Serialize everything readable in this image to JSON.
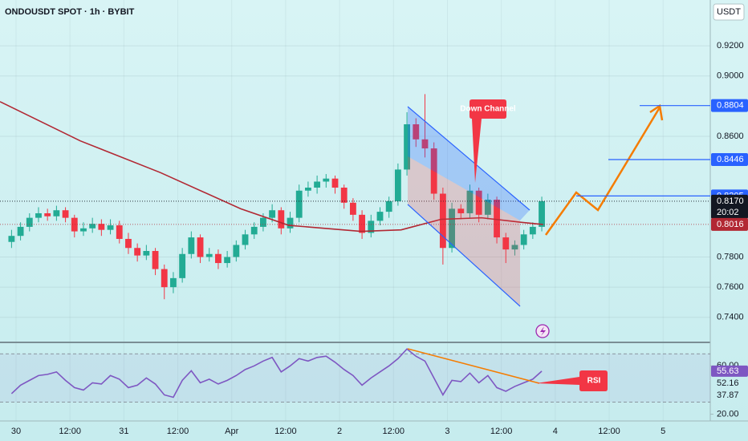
{
  "chart_data": [
    {
      "type": "candlestick",
      "title": "ONDOUSDT SPOT · 1h · BYBIT",
      "unit": "USDT",
      "x": [
        -1,
        1,
        3,
        5,
        7,
        9,
        11,
        13,
        15,
        17,
        19,
        21,
        23,
        25,
        27,
        29,
        31,
        33,
        35,
        37,
        39,
        41,
        43,
        45,
        47,
        49,
        51,
        53,
        55,
        57,
        59,
        61,
        63,
        65,
        67,
        69,
        71,
        73,
        75,
        77,
        79,
        81,
        83,
        85,
        87,
        89,
        91,
        93,
        95,
        97,
        99,
        101,
        103,
        105,
        107,
        109,
        111,
        113,
        115,
        117
      ],
      "open": [
        0.79,
        0.794,
        0.8,
        0.806,
        0.809,
        0.807,
        0.811,
        0.806,
        0.797,
        0.799,
        0.802,
        0.798,
        0.801,
        0.792,
        0.786,
        0.781,
        0.784,
        0.772,
        0.76,
        0.766,
        0.782,
        0.793,
        0.78,
        0.782,
        0.776,
        0.78,
        0.788,
        0.795,
        0.8,
        0.806,
        0.811,
        0.799,
        0.806,
        0.824,
        0.826,
        0.83,
        0.832,
        0.826,
        0.816,
        0.808,
        0.796,
        0.804,
        0.81,
        0.817,
        0.838,
        0.868,
        0.858,
        0.852,
        0.822,
        0.786,
        0.812,
        0.809,
        0.824,
        0.808,
        0.818,
        0.793,
        0.785,
        0.788,
        0.795,
        0.8
      ],
      "high": [
        0.798,
        0.803,
        0.809,
        0.813,
        0.812,
        0.814,
        0.813,
        0.808,
        0.803,
        0.806,
        0.805,
        0.805,
        0.804,
        0.796,
        0.789,
        0.788,
        0.786,
        0.775,
        0.77,
        0.786,
        0.797,
        0.795,
        0.786,
        0.785,
        0.784,
        0.791,
        0.798,
        0.803,
        0.809,
        0.815,
        0.813,
        0.81,
        0.828,
        0.83,
        0.834,
        0.835,
        0.834,
        0.828,
        0.819,
        0.811,
        0.808,
        0.813,
        0.82,
        0.842,
        0.876,
        0.872,
        0.888,
        0.856,
        0.826,
        0.816,
        0.815,
        0.828,
        0.826,
        0.822,
        0.82,
        0.796,
        0.791,
        0.798,
        0.803,
        0.82
      ],
      "low": [
        0.786,
        0.791,
        0.797,
        0.803,
        0.804,
        0.804,
        0.803,
        0.793,
        0.794,
        0.796,
        0.794,
        0.795,
        0.789,
        0.782,
        0.777,
        0.778,
        0.768,
        0.752,
        0.756,
        0.763,
        0.779,
        0.776,
        0.777,
        0.772,
        0.773,
        0.777,
        0.785,
        0.792,
        0.797,
        0.803,
        0.795,
        0.796,
        0.803,
        0.82,
        0.822,
        0.826,
        0.822,
        0.812,
        0.804,
        0.792,
        0.793,
        0.801,
        0.806,
        0.814,
        0.834,
        0.853,
        0.846,
        0.818,
        0.775,
        0.783,
        0.805,
        0.806,
        0.803,
        0.805,
        0.789,
        0.776,
        0.781,
        0.785,
        0.792,
        0.797
      ],
      "close": [
        0.794,
        0.8,
        0.806,
        0.809,
        0.807,
        0.811,
        0.806,
        0.797,
        0.799,
        0.802,
        0.798,
        0.801,
        0.792,
        0.786,
        0.781,
        0.784,
        0.772,
        0.76,
        0.766,
        0.782,
        0.793,
        0.78,
        0.782,
        0.776,
        0.78,
        0.788,
        0.795,
        0.8,
        0.806,
        0.811,
        0.799,
        0.806,
        0.824,
        0.826,
        0.83,
        0.832,
        0.826,
        0.816,
        0.808,
        0.796,
        0.804,
        0.81,
        0.817,
        0.838,
        0.868,
        0.858,
        0.852,
        0.822,
        0.786,
        0.812,
        0.809,
        0.824,
        0.808,
        0.818,
        0.793,
        0.785,
        0.788,
        0.795,
        0.8,
        0.817
      ],
      "up_color": "#22ab94",
      "down_color": "#f23645",
      "series": [
        {
          "color": "#b22833",
          "x": [
            -3.57,
            14.3,
            32.1,
            50,
            60.7,
            76.8,
            85.7,
            94.6,
            103.6,
            112.5,
            117.3
          ],
          "values": [
            0.883,
            0.857,
            0.836,
            0.812,
            0.801,
            0.797,
            0.798,
            0.805,
            0.806,
            0.803,
            0.8016
          ]
        }
      ],
      "xlim": [
        -3.57,
        154.5
      ],
      "ylim": [
        0.7234,
        0.9504
      ],
      "xticks": [
        {
          "value": 0,
          "label": "30"
        },
        {
          "value": 12,
          "label": "12:00"
        },
        {
          "value": 24,
          "label": "31"
        },
        {
          "value": 36,
          "label": "12:00"
        },
        {
          "value": 48,
          "label": "Apr"
        },
        {
          "value": 60,
          "label": "12:00"
        },
        {
          "value": 72,
          "label": "2"
        },
        {
          "value": 84,
          "label": "12:00"
        },
        {
          "value": 96,
          "label": "3"
        },
        {
          "value": 108,
          "label": "12:00"
        },
        {
          "value": 120,
          "label": "4"
        },
        {
          "value": 132,
          "label": "12:00"
        },
        {
          "value": 144,
          "label": "5"
        }
      ],
      "yticks": [
        {
          "value": 0.92,
          "label": "0.9200"
        },
        {
          "value": 0.9,
          "label": "0.9000"
        },
        {
          "value": 0.86,
          "label": "0.8600"
        },
        {
          "value": 0.78,
          "label": "0.7800"
        },
        {
          "value": 0.76,
          "label": "0.7600"
        },
        {
          "value": 0.74,
          "label": "0.7400"
        }
      ],
      "grid": true,
      "levels": [
        {
          "value": 0.8804,
          "label": "0.8804",
          "color": "#2962ff"
        },
        {
          "value": 0.8446,
          "label": "0.8446",
          "color": "#2962ff"
        },
        {
          "value": 0.8205,
          "label": "0.8205",
          "color": "#2962ff"
        }
      ],
      "price_badges": [
        {
          "value": 0.817,
          "label": "0.8170",
          "color": "#131722",
          "countdown": "20:02"
        },
        {
          "value": 0.8016,
          "label": "0.8016",
          "color": "#b22833"
        }
      ],
      "annotation": "Down Channel"
    },
    {
      "type": "line",
      "x": [
        -1,
        1,
        3,
        5,
        7,
        9,
        11,
        13,
        15,
        17,
        19,
        21,
        23,
        25,
        27,
        29,
        31,
        33,
        35,
        37,
        39,
        41,
        43,
        45,
        47,
        49,
        51,
        53,
        55,
        57,
        59,
        61,
        63,
        65,
        67,
        69,
        71,
        73,
        75,
        77,
        79,
        81,
        83,
        85,
        87,
        89,
        91,
        93,
        95,
        97,
        99,
        101,
        103,
        105,
        107,
        109,
        111,
        113,
        115,
        117
      ],
      "series": [
        {
          "color": "#7e57c2",
          "values": [
            37,
            44,
            48,
            52,
            53,
            55,
            48,
            42,
            40,
            46,
            45,
            52,
            49,
            42,
            44,
            50,
            45,
            36,
            34,
            48,
            56,
            46,
            49,
            45,
            48,
            52,
            57,
            60,
            64,
            67,
            55,
            60,
            66,
            64,
            67,
            68,
            63,
            57,
            52,
            44,
            50,
            55,
            60,
            66,
            74,
            68,
            64,
            50,
            36,
            48,
            47,
            54,
            46,
            52,
            42,
            39,
            43,
            46,
            49,
            55.63
          ]
        }
      ],
      "xlim": [
        -3.57,
        154.5
      ],
      "ylim": [
        14.4,
        78.8
      ],
      "yticks": [
        {
          "value": 60,
          "label": "60.00"
        },
        {
          "value": 20,
          "label": "20.00"
        }
      ],
      "bands": [
        30,
        70
      ],
      "badges": [
        {
          "value": 55.63,
          "color": "#7e57c2"
        },
        {
          "value": 52.16
        },
        {
          "value": 37.87
        }
      ],
      "annotation": "RSI"
    }
  ]
}
